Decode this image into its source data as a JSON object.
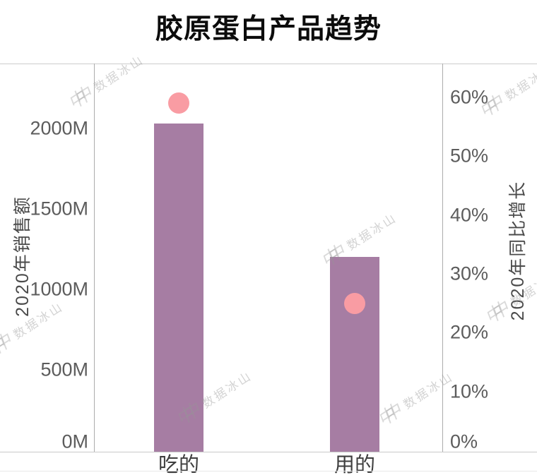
{
  "title": "胶原蛋白产品趋势",
  "watermark": {
    "icon": "shuju-bingshan-logo",
    "logo_glyph": "中中",
    "text": "数据冰山"
  },
  "chart_data": {
    "type": "bar",
    "subtype": "dual-axis column chart with point markers",
    "title": "胶原蛋白产品趋势",
    "categories": [
      "吃的",
      "用的"
    ],
    "series": [
      {
        "name": "2020年销售额",
        "type": "bar",
        "axis": "left",
        "unit": "M",
        "values": [
          2030,
          1200
        ]
      },
      {
        "name": "2020年同比增长",
        "type": "point",
        "axis": "right",
        "unit": "%",
        "values": [
          59,
          25
        ]
      }
    ],
    "left_axis": {
      "label": "2020年销售额",
      "ticks": [
        "0M",
        "500M",
        "1000M",
        "1500M",
        "2000M"
      ],
      "tick_values": [
        0,
        500,
        1000,
        1500,
        2000
      ],
      "range": [
        0,
        2200
      ]
    },
    "right_axis": {
      "label": "2020年同比增长",
      "ticks": [
        "0%",
        "10%",
        "20%",
        "30%",
        "40%",
        "50%",
        "60%"
      ],
      "tick_values": [
        0,
        10,
        20,
        30,
        40,
        50,
        60
      ],
      "range": [
        0,
        66
      ]
    },
    "grid": false,
    "legend": false,
    "background": "#FFFFFF",
    "colors": {
      "bar": "#A67DA3",
      "point": "#F99CA3",
      "axis_line": "#C9C9C9",
      "tick_text": "#5C5C5C",
      "title_text": "#0C0C0C"
    }
  }
}
